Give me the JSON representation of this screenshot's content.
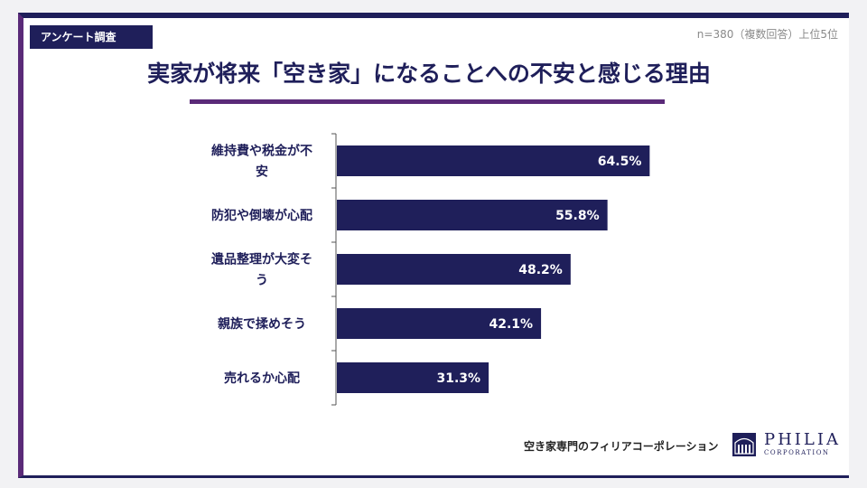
{
  "header": {
    "tag_label": "アンケート調査",
    "note": "n=380（複数回答）上位5位",
    "title": "実家が将来「空き家」になることへの不安と感じる理由"
  },
  "chart_data": {
    "type": "bar",
    "orientation": "horizontal",
    "categories": [
      "維持費や税金が不安",
      "防犯や倒壊が心配",
      "遺品整理が大変そう",
      "親族で揉めそう",
      "売れるか心配"
    ],
    "category_lines": [
      [
        "維持費や税金が不",
        "安"
      ],
      [
        "防犯や倒壊が心配"
      ],
      [
        "遺品整理が大変そ",
        "う"
      ],
      [
        "親族で揉めそう"
      ],
      [
        "売れるか心配"
      ]
    ],
    "values": [
      64.5,
      55.8,
      48.2,
      42.1,
      31.3
    ],
    "value_labels": [
      "64.5%",
      "55.8%",
      "48.2%",
      "42.1%",
      "31.3%"
    ],
    "unit": "%",
    "xlim": [
      0,
      100
    ],
    "grid": false,
    "bar_color": "#1f1f5a",
    "label_color": "#1f1f5a"
  },
  "footer": {
    "company_text": "空き家専門のフィリアコーポレーション",
    "logo_name": "PHILIA",
    "logo_sub": "CORPORATION"
  },
  "colors": {
    "navy": "#1f1f5a",
    "purple": "#5a2a78"
  }
}
